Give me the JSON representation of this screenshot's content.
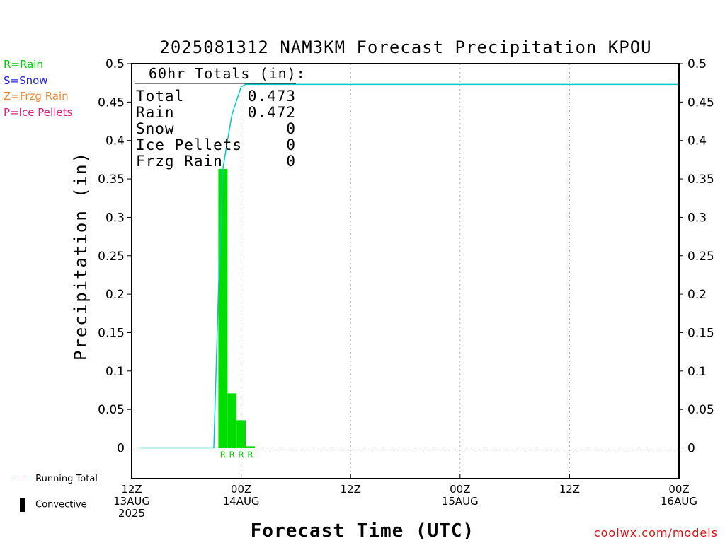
{
  "type_legend": [
    {
      "label": "R=Rain",
      "color": "#00cc00"
    },
    {
      "label": "S=Snow",
      "color": "#2222ee"
    },
    {
      "label": "Z=Frzg Rain",
      "color": "#ee8833"
    },
    {
      "label": "P=Ice Pellets",
      "color": "#dd2288"
    }
  ],
  "bottom_legend": {
    "running_total_label": "Running Total",
    "running_total_color": "#00c8c8",
    "convective_label": "Convective"
  },
  "credit": "coolwx.com/models",
  "totals_box": {
    "title": "60hr Totals (in):",
    "rows": [
      {
        "label": "Total",
        "value": "0.473"
      },
      {
        "label": "Rain",
        "value": "0.472"
      },
      {
        "label": "Snow",
        "value": "0"
      },
      {
        "label": "Ice Pellets",
        "value": "0"
      },
      {
        "label": "Frzg Rain",
        "value": "0"
      }
    ]
  },
  "chart_data": {
    "type": "bar",
    "title": "2025081312 NAM3KM Forecast Precipitation KPOU",
    "xlabel": "Forecast Time (UTC)",
    "ylabel": "Precipitation (in)",
    "ylim": [
      -0.04,
      0.5
    ],
    "yticks": [
      0,
      0.05,
      0.1,
      0.15,
      0.2,
      0.25,
      0.3,
      0.35,
      0.4,
      0.45,
      0.5
    ],
    "ytick_labels": [
      "0",
      "0.05",
      "0.1",
      "0.15",
      "0.2",
      "0.25",
      "0.3",
      "0.35",
      "0.4",
      "0.45",
      "0.5"
    ],
    "xlim_hours": [
      0,
      60
    ],
    "xticks": [
      {
        "hour": 0,
        "lines": [
          "12Z",
          "13AUG",
          "2025"
        ]
      },
      {
        "hour": 12,
        "lines": [
          "00Z",
          "14AUG"
        ]
      },
      {
        "hour": 24,
        "lines": [
          "12Z"
        ]
      },
      {
        "hour": 36,
        "lines": [
          "00Z",
          "15AUG"
        ]
      },
      {
        "hour": 48,
        "lines": [
          "12Z"
        ]
      },
      {
        "hour": 60,
        "lines": [
          "00Z",
          "16AUG"
        ]
      }
    ],
    "grid_hours": [
      12,
      24,
      36,
      48
    ],
    "bars": [
      {
        "start_hour": 9.5,
        "end_hour": 10.5,
        "value": 0.363,
        "ptype": "R"
      },
      {
        "start_hour": 10.5,
        "end_hour": 11.5,
        "value": 0.071,
        "ptype": "R"
      },
      {
        "start_hour": 11.5,
        "end_hour": 12.5,
        "value": 0.036,
        "ptype": "R"
      },
      {
        "start_hour": 12.5,
        "end_hour": 13.5,
        "value": 0.002,
        "ptype": "R"
      }
    ],
    "bar_color": "#00dd00",
    "running_total": {
      "name": "Running Total",
      "color": "#00c8c8",
      "points": [
        [
          0.8,
          0
        ],
        [
          9.0,
          0
        ],
        [
          9.5,
          0.2
        ],
        [
          10.0,
          0.363
        ],
        [
          10.5,
          0.4
        ],
        [
          11.0,
          0.434
        ],
        [
          11.5,
          0.452
        ],
        [
          12.0,
          0.47
        ],
        [
          12.5,
          0.473
        ],
        [
          60,
          0.473
        ]
      ]
    },
    "zero_line_style": "dashed"
  }
}
